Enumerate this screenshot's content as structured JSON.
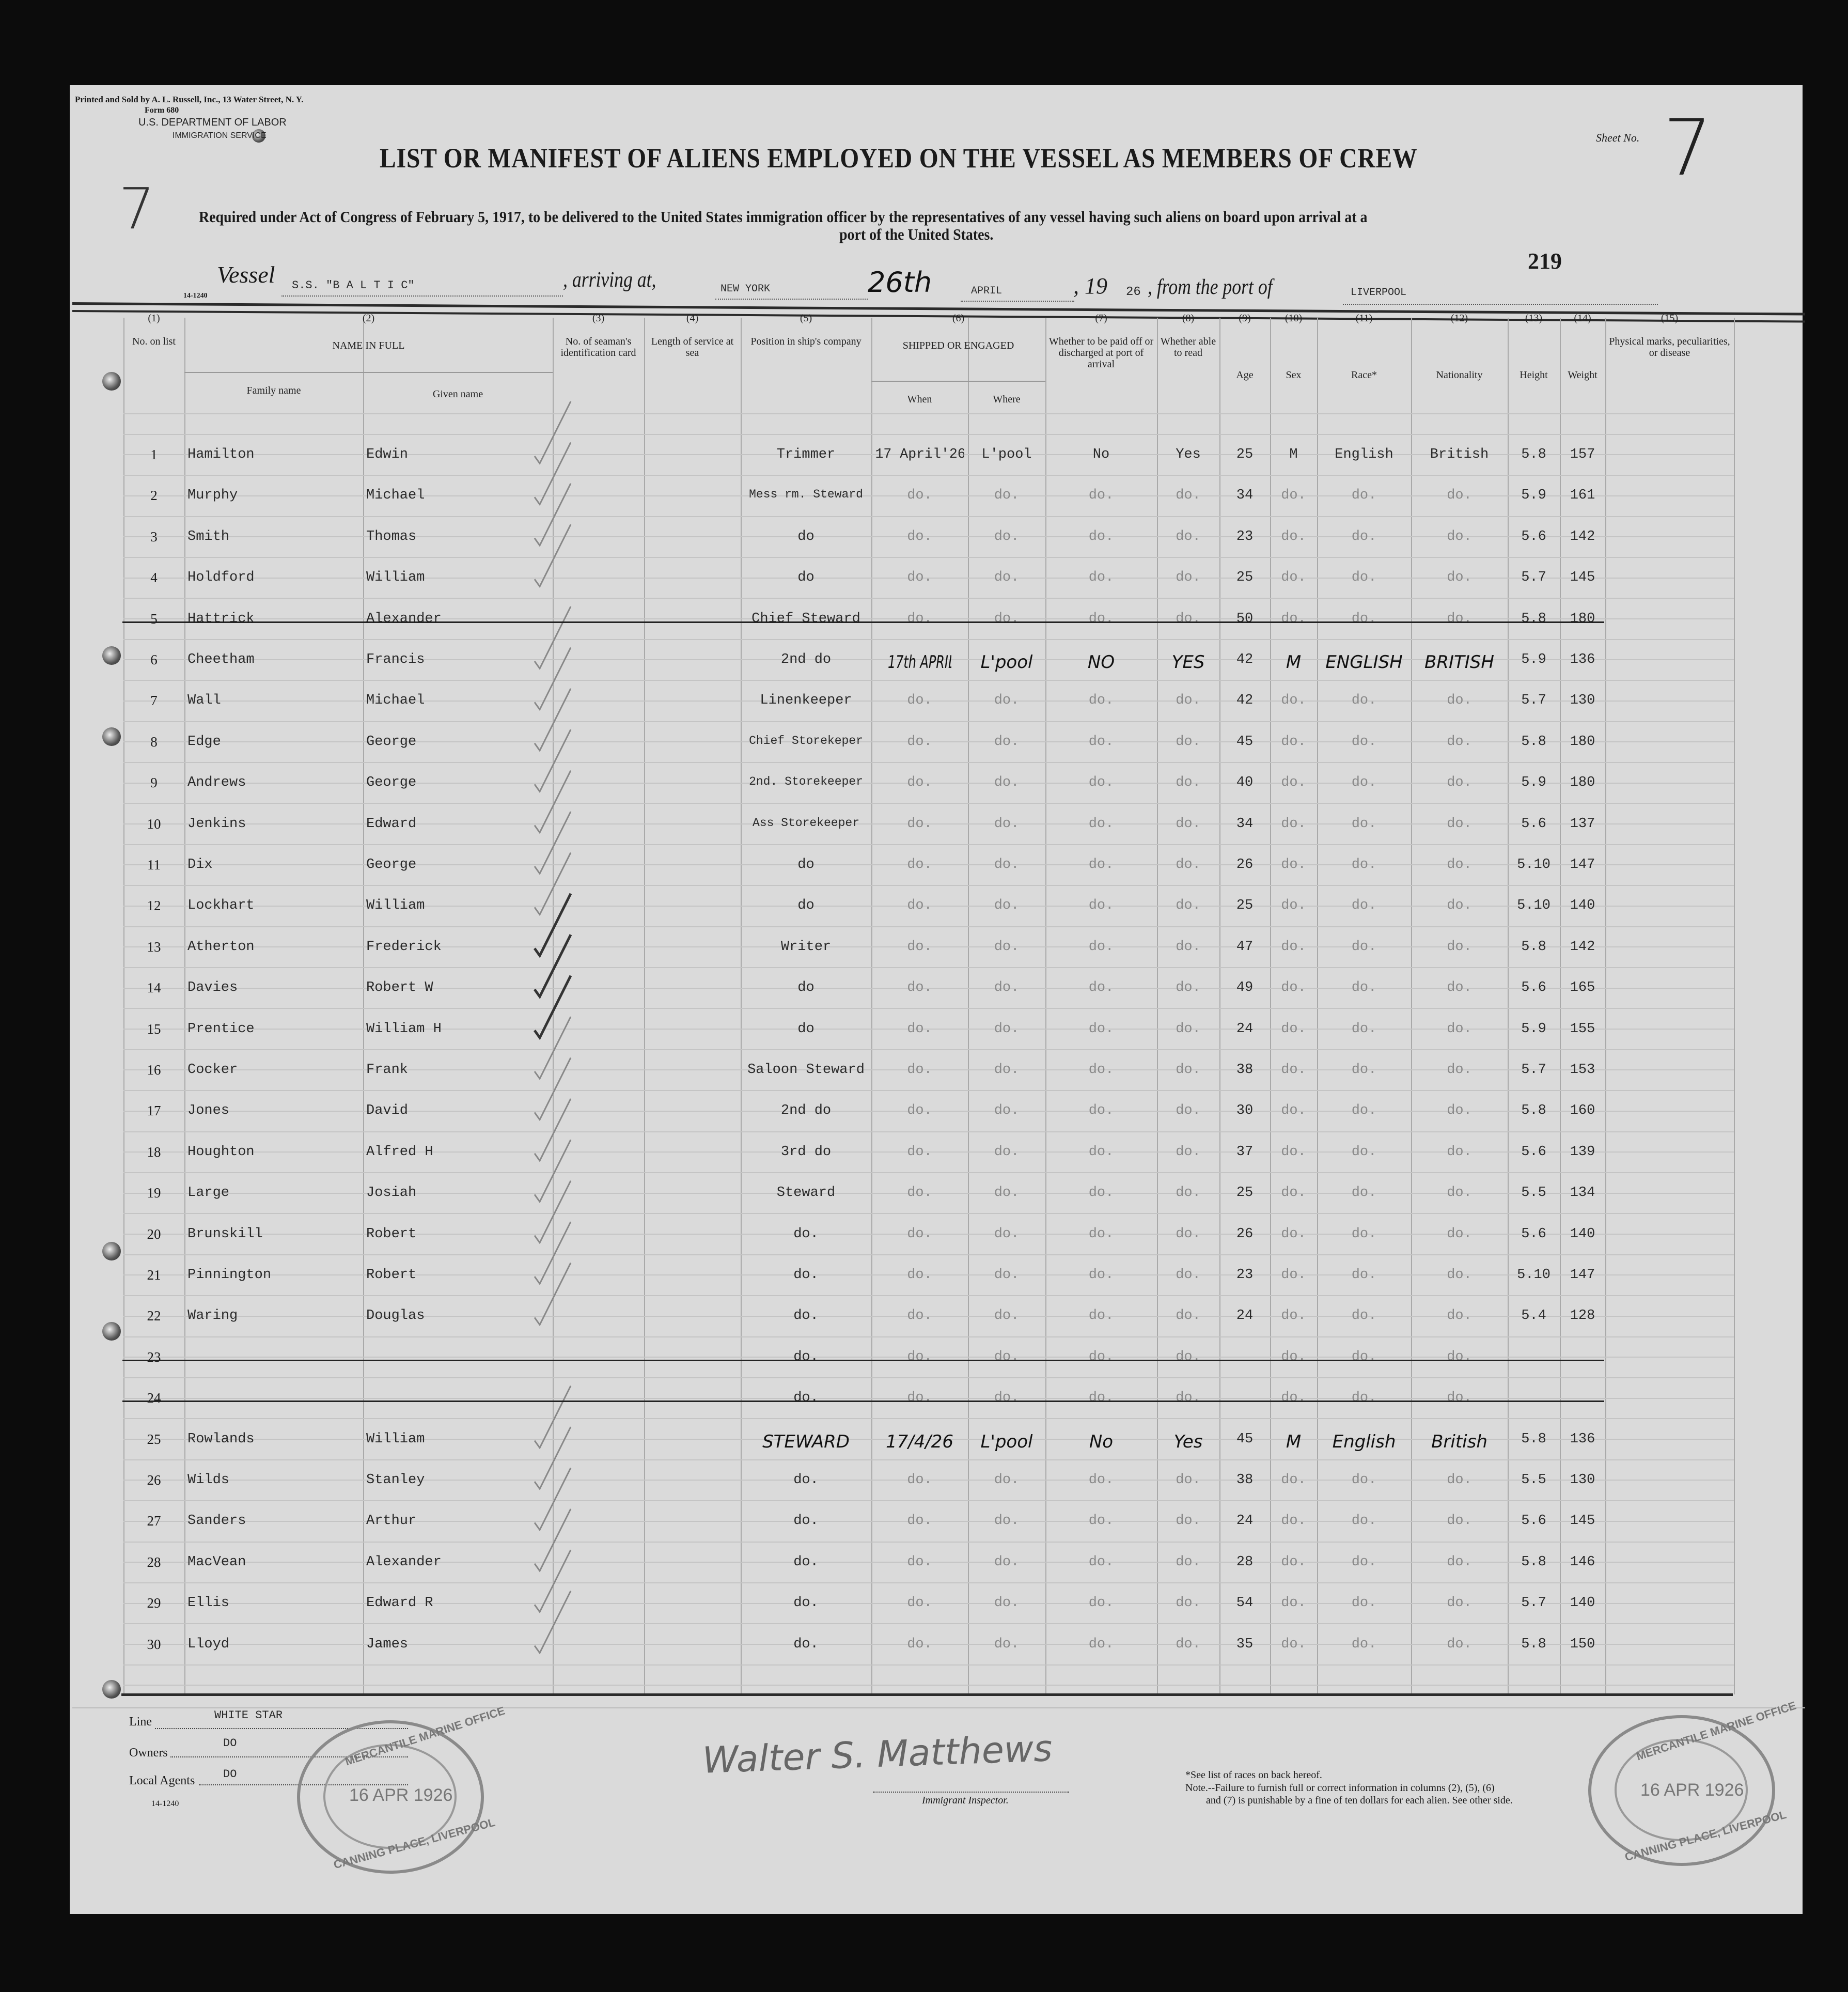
{
  "printer": "Printed and Sold by A. L. Russell, Inc., 13 Water Street, N. Y.",
  "form_no": "Form 680",
  "department": "U.S. DEPARTMENT OF LABOR",
  "service": "IMMIGRATION SERVICE",
  "sheet_label": "Sheet No.",
  "sheet_no": "7",
  "margin_mark": "7",
  "title": "LIST OR MANIFEST OF ALIENS EMPLOYED ON THE VESSEL AS MEMBERS OF CREW",
  "subtitle_line1": "Required under Act of Congress of February 5, 1917, to be delivered to the United States immigration officer by the representatives of any vessel having such aliens on board upon arrival at a",
  "subtitle_line2": "port of the United States.",
  "page_number": "219",
  "vessel": {
    "vessel_label": "Vessel",
    "vessel_name": "S.S. \"B A L T I C\"",
    "arriving_label": ", arriving at,",
    "arriving_port": "NEW YORK",
    "day": "26th",
    "month": "APRIL",
    "year_prefix": ", 19",
    "year": "26",
    "from_label": ", from the port of",
    "from_port": "LIVERPOOL",
    "form_code": "14-1240"
  },
  "columns": {
    "c1": {
      "num": "(1)",
      "label": "No. on list"
    },
    "c2": {
      "num": "(2)",
      "label": "NAME IN FULL",
      "family": "Family name",
      "given": "Given name"
    },
    "c3": {
      "num": "(3)",
      "label": "No. of seaman's identification card"
    },
    "c4": {
      "num": "(4)",
      "label": "Length of service at sea"
    },
    "c5": {
      "num": "(5)",
      "label": "Position in ship's company"
    },
    "c6": {
      "num": "(6)",
      "label": "SHIPPED OR ENGAGED",
      "when": "When",
      "where": "Where"
    },
    "c7": {
      "num": "(7)",
      "label": "Whether to be paid off or discharged at port of arrival"
    },
    "c8": {
      "num": "(8)",
      "label": "Whether able to read"
    },
    "c9": {
      "num": "(9)",
      "label": "Age"
    },
    "c10": {
      "num": "(10)",
      "label": "Sex"
    },
    "c11": {
      "num": "(11)",
      "label": "Race*"
    },
    "c12": {
      "num": "(12)",
      "label": "Nationality"
    },
    "c13": {
      "num": "(13)",
      "label": "Height"
    },
    "c14": {
      "num": "(14)",
      "label": "Weight"
    },
    "c15": {
      "num": "(15)",
      "label": "Physical marks, peculiarities, or disease"
    }
  },
  "rows": [
    {
      "no": "1",
      "family": "Hamilton",
      "given": "Edwin",
      "position": "Trimmer",
      "when": "17 April'26",
      "where": "L'pool",
      "paid_off": "No",
      "read": "Yes",
      "age": "25",
      "sex": "M",
      "race": "English",
      "nationality": "British",
      "height": "5.8",
      "weight": "157",
      "checked": true
    },
    {
      "no": "2",
      "family": "Murphy",
      "given": "Michael",
      "position": "Mess rm. Steward",
      "when": "do.",
      "where": "do.",
      "paid_off": "do.",
      "read": "do.",
      "age": "34",
      "sex": "do.",
      "race": "do.",
      "nationality": "do.",
      "height": "5.9",
      "weight": "161",
      "checked": true
    },
    {
      "no": "3",
      "family": "Smith",
      "given": "Thomas",
      "position": "do",
      "when": "do.",
      "where": "do.",
      "paid_off": "do.",
      "read": "do.",
      "age": "23",
      "sex": "do.",
      "race": "do.",
      "nationality": "do.",
      "height": "5.6",
      "weight": "142",
      "checked": true
    },
    {
      "no": "4",
      "family": "Holdford",
      "given": "William",
      "position": "do",
      "when": "do.",
      "where": "do.",
      "paid_off": "do.",
      "read": "do.",
      "age": "25",
      "sex": "do.",
      "race": "do.",
      "nationality": "do.",
      "height": "5.7",
      "weight": "145",
      "checked": true
    },
    {
      "no": "5",
      "family": "Hattrick",
      "given": "Alexander",
      "position": "Chief Steward",
      "when": "do.",
      "where": "do.",
      "paid_off": "do.",
      "read": "do.",
      "age": "50",
      "sex": "do.",
      "race": "do.",
      "nationality": "do.",
      "height": "5.8",
      "weight": "180",
      "crossed_out": true
    },
    {
      "no": "6",
      "family": "Cheetham",
      "given": "Francis",
      "position": "2nd     do",
      "when": "17th APRIL '26",
      "where": "L'pool",
      "paid_off": "NO",
      "read": "YES",
      "age": "42",
      "sex": "M",
      "race": "ENGLISH",
      "nationality": "BRITISH",
      "height": "5.9",
      "weight": "136",
      "handwritten": true,
      "checked": true
    },
    {
      "no": "7",
      "family": "Wall",
      "given": "Michael",
      "position": "Linenkeeper",
      "when": "do.",
      "where": "do.",
      "paid_off": "do.",
      "read": "do.",
      "age": "42",
      "sex": "do.",
      "race": "do.",
      "nationality": "do.",
      "height": "5.7",
      "weight": "130",
      "checked": true
    },
    {
      "no": "8",
      "family": "Edge",
      "given": "George",
      "position": "Chief Storekeper",
      "when": "do.",
      "where": "do.",
      "paid_off": "do.",
      "read": "do.",
      "age": "45",
      "sex": "do.",
      "race": "do.",
      "nationality": "do.",
      "height": "5.8",
      "weight": "180",
      "checked": true
    },
    {
      "no": "9",
      "family": "Andrews",
      "given": "George",
      "position": "2nd. Storekeeper",
      "when": "do.",
      "where": "do.",
      "paid_off": "do.",
      "read": "do.",
      "age": "40",
      "sex": "do.",
      "race": "do.",
      "nationality": "do.",
      "height": "5.9",
      "weight": "180",
      "checked": true
    },
    {
      "no": "10",
      "family": "Jenkins",
      "given": "Edward",
      "position": "Ass Storekeeper",
      "when": "do.",
      "where": "do.",
      "paid_off": "do.",
      "read": "do.",
      "age": "34",
      "sex": "do.",
      "race": "do.",
      "nationality": "do.",
      "height": "5.6",
      "weight": "137",
      "checked": true
    },
    {
      "no": "11",
      "family": "Dix",
      "given": "George",
      "position": "do",
      "when": "do.",
      "where": "do.",
      "paid_off": "do.",
      "read": "do.",
      "age": "26",
      "sex": "do.",
      "race": "do.",
      "nationality": "do.",
      "height": "5.10",
      "weight": "147",
      "checked": true
    },
    {
      "no": "12",
      "family": "Lockhart",
      "given": "William",
      "position": "do",
      "when": "do.",
      "where": "do.",
      "paid_off": "do.",
      "read": "do.",
      "age": "25",
      "sex": "do.",
      "race": "do.",
      "nationality": "do.",
      "height": "5.10",
      "weight": "140",
      "checked": true
    },
    {
      "no": "13",
      "family": "Atherton",
      "given": "Frederick",
      "position": "Writer",
      "when": "do.",
      "where": "do.",
      "paid_off": "do.",
      "read": "do.",
      "age": "47",
      "sex": "do.",
      "race": "do.",
      "nationality": "do.",
      "height": "5.8",
      "weight": "142",
      "checked": true
    },
    {
      "no": "14",
      "family": "Davies",
      "given": "Robert   W",
      "position": "do",
      "when": "do.",
      "where": "do.",
      "paid_off": "do.",
      "read": "do.",
      "age": "49",
      "sex": "do.",
      "race": "do.",
      "nationality": "do.",
      "height": "5.6",
      "weight": "165",
      "checked": true
    },
    {
      "no": "15",
      "family": "Prentice",
      "given": "William   H",
      "position": "do",
      "when": "do.",
      "where": "do.",
      "paid_off": "do.",
      "read": "do.",
      "age": "24",
      "sex": "do.",
      "race": "do.",
      "nationality": "do.",
      "height": "5.9",
      "weight": "155",
      "checked": true
    },
    {
      "no": "16",
      "family": "Cocker",
      "given": "Frank",
      "position": "Saloon Steward",
      "when": "do.",
      "where": "do.",
      "paid_off": "do.",
      "read": "do.",
      "age": "38",
      "sex": "do.",
      "race": "do.",
      "nationality": "do.",
      "height": "5.7",
      "weight": "153",
      "checked": true
    },
    {
      "no": "17",
      "family": "Jones",
      "given": "David",
      "position": "2nd  do",
      "when": "do.",
      "where": "do.",
      "paid_off": "do.",
      "read": "do.",
      "age": "30",
      "sex": "do.",
      "race": "do.",
      "nationality": "do.",
      "height": "5.8",
      "weight": "160",
      "checked": true
    },
    {
      "no": "18",
      "family": "Houghton",
      "given": "Alfred H",
      "position": "3rd  do",
      "when": "do.",
      "where": "do.",
      "paid_off": "do.",
      "read": "do.",
      "age": "37",
      "sex": "do.",
      "race": "do.",
      "nationality": "do.",
      "height": "5.6",
      "weight": "139",
      "checked": true
    },
    {
      "no": "19",
      "family": "Large",
      "given": "Josiah",
      "position": "Steward",
      "when": "do.",
      "where": "do.",
      "paid_off": "do.",
      "read": "do.",
      "age": "25",
      "sex": "do.",
      "race": "do.",
      "nationality": "do.",
      "height": "5.5",
      "weight": "134",
      "checked": true
    },
    {
      "no": "20",
      "family": "Brunskill",
      "given": "Robert",
      "position": "do.",
      "when": "do.",
      "where": "do.",
      "paid_off": "do.",
      "read": "do.",
      "age": "26",
      "sex": "do.",
      "race": "do.",
      "nationality": "do.",
      "height": "5.6",
      "weight": "140",
      "checked": true
    },
    {
      "no": "21",
      "family": "Pinnington",
      "given": "Robert",
      "position": "do.",
      "when": "do.",
      "where": "do.",
      "paid_off": "do.",
      "read": "do.",
      "age": "23",
      "sex": "do.",
      "race": "do.",
      "nationality": "do.",
      "height": "5.10",
      "weight": "147",
      "checked": true
    },
    {
      "no": "22",
      "family": "Waring",
      "given": "Douglas",
      "position": "do.",
      "when": "do.",
      "where": "do.",
      "paid_off": "do.",
      "read": "do.",
      "age": "24",
      "sex": "do.",
      "race": "do.",
      "nationality": "do.",
      "height": "5.4",
      "weight": "128",
      "checked": true
    },
    {
      "no": "23",
      "family": "",
      "given": "",
      "position": "do.",
      "when": "do.",
      "where": "do.",
      "paid_off": "do.",
      "read": "do.",
      "age": "",
      "sex": "do.",
      "race": "do.",
      "nationality": "do.",
      "height": "",
      "weight": "",
      "crossed_out": true
    },
    {
      "no": "24",
      "family": "",
      "given": "",
      "position": "do.",
      "when": "do.",
      "where": "do.",
      "paid_off": "do.",
      "read": "do.",
      "age": "",
      "sex": "do.",
      "race": "do.",
      "nationality": "do.",
      "height": "",
      "weight": "",
      "crossed_out": true
    },
    {
      "no": "25",
      "family": "Rowlands",
      "given": "William",
      "position": "STEWARD",
      "when": "17/4/26",
      "where": "L'pool",
      "paid_off": "No",
      "read": "Yes",
      "age": "45",
      "sex": "M",
      "race": "English",
      "nationality": "British",
      "height": "5.8",
      "weight": "136",
      "handwritten": true,
      "checked": true
    },
    {
      "no": "26",
      "family": "Wilds",
      "given": "Stanley",
      "position": "do.",
      "when": "do.",
      "where": "do.",
      "paid_off": "do.",
      "read": "do.",
      "age": "38",
      "sex": "do.",
      "race": "do.",
      "nationality": "do.",
      "height": "5.5",
      "weight": "130",
      "checked": true
    },
    {
      "no": "27",
      "family": "Sanders",
      "given": "Arthur",
      "position": "do.",
      "when": "do.",
      "where": "do.",
      "paid_off": "do.",
      "read": "do.",
      "age": "24",
      "sex": "do.",
      "race": "do.",
      "nationality": "do.",
      "height": "5.6",
      "weight": "145",
      "checked": true
    },
    {
      "no": "28",
      "family": "MacVean",
      "given": "Alexander",
      "position": "do.",
      "when": "do.",
      "where": "do.",
      "paid_off": "do.",
      "read": "do.",
      "age": "28",
      "sex": "do.",
      "race": "do.",
      "nationality": "do.",
      "height": "5.8",
      "weight": "146",
      "checked": true
    },
    {
      "no": "29",
      "family": "Ellis",
      "given": "Edward   R",
      "position": "do.",
      "when": "do.",
      "where": "do.",
      "paid_off": "do.",
      "read": "do.",
      "age": "54",
      "sex": "do.",
      "race": "do.",
      "nationality": "do.",
      "height": "5.7",
      "weight": "140",
      "checked": true
    },
    {
      "no": "30",
      "family": "Lloyd",
      "given": "James",
      "position": "do.",
      "when": "do.",
      "where": "do.",
      "paid_off": "do.",
      "read": "do.",
      "age": "35",
      "sex": "do.",
      "race": "do.",
      "nationality": "do.",
      "height": "5.8",
      "weight": "150",
      "checked": true
    }
  ],
  "footer": {
    "line_label": "Line",
    "line_value": "WHITE STAR",
    "owners_label": "Owners",
    "owners_value": "DO",
    "agents_label": "Local Agents",
    "agents_value": "DO",
    "form_code": "14-1240",
    "inspector_label": "Immigrant Inspector.",
    "inspector_signature": "Walter S. Matthews",
    "races_note": "*See list of races on back hereof.",
    "note_line1": "Note.--Failure to furnish full or correct information in columns (2), (5), (6)",
    "note_line2": "and (7) is punishable by a fine of ten dollars for each alien.  See other side."
  },
  "stamps": {
    "top_text": "MERCANTILE MARINE OFFICE",
    "date": "16 APR 1926",
    "bottom_text": "CANNING PLACE, LIVERPOOL"
  }
}
